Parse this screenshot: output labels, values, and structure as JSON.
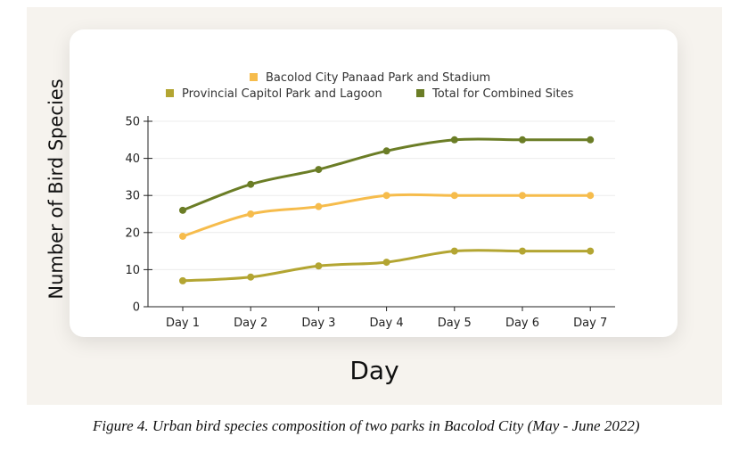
{
  "chart_data": {
    "type": "line",
    "title": "",
    "xlabel": "Day",
    "ylabel": "Number of Bird Species",
    "categories": [
      "Day 1",
      "Day 2",
      "Day 3",
      "Day 4",
      "Day 5",
      "Day 6",
      "Day 7"
    ],
    "ylim": [
      0,
      50
    ],
    "yticks": [
      0,
      10,
      20,
      30,
      40,
      50
    ],
    "grid": true,
    "legend_position": "top",
    "series": [
      {
        "name": "Bacolod City Panaad Park and Stadium",
        "color": "#f6bc4c",
        "values": [
          19,
          25,
          27,
          30,
          30,
          30,
          30
        ]
      },
      {
        "name": "Provincial Capitol Park and Lagoon",
        "color": "#b3a532",
        "values": [
          7,
          8,
          11,
          12,
          15,
          15,
          15
        ]
      },
      {
        "name": "Total for Combined Sites",
        "color": "#6b7d26",
        "values": [
          26,
          33,
          37,
          42,
          45,
          45,
          45
        ]
      }
    ]
  },
  "caption": "Figure 4. Urban bird species composition of two parks in Bacolod City (May - June 2022)"
}
